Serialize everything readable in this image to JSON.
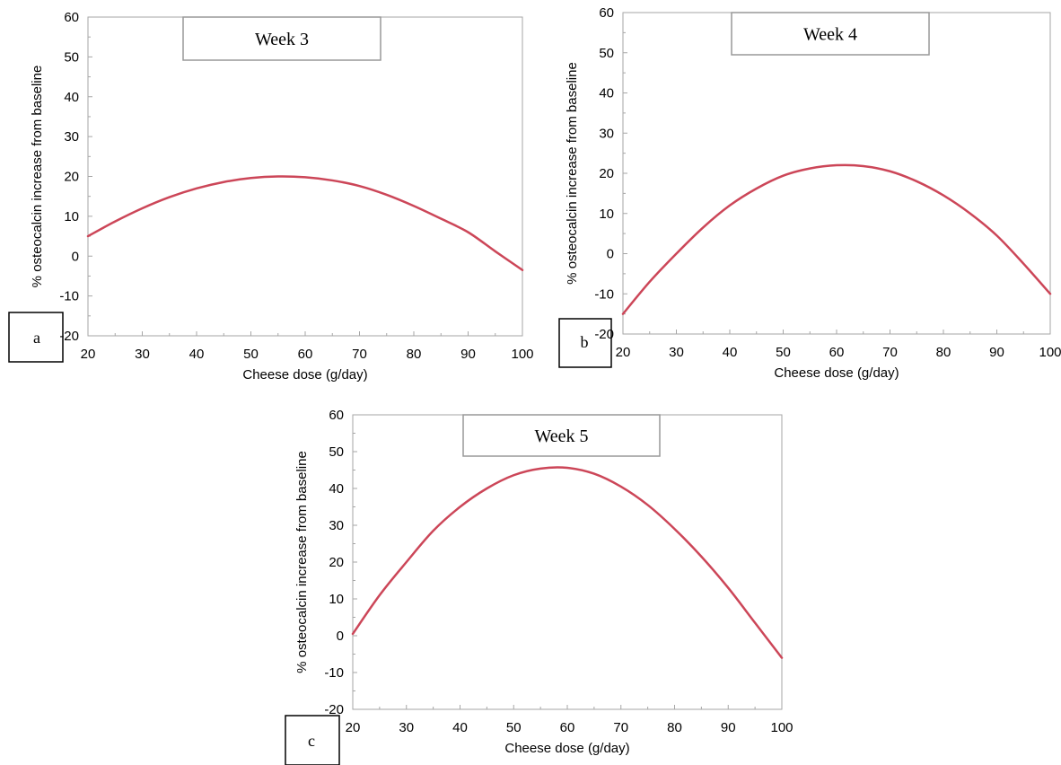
{
  "colors": {
    "curve": "#cc4658",
    "axis": "#a6a6a6",
    "frame": "#000000",
    "background": "#ffffff"
  },
  "chart_data": [
    {
      "type": "line",
      "panel_label": "a",
      "title": "Week 3",
      "xlabel": "Cheese dose (g/day)",
      "ylabel": "% osteocalcin increase from baseline",
      "xlim": [
        20,
        100
      ],
      "ylim": [
        -20,
        60
      ],
      "xticks": [
        20,
        30,
        40,
        50,
        60,
        70,
        80,
        90,
        100
      ],
      "yticks": [
        -20,
        -10,
        0,
        10,
        20,
        30,
        40,
        50,
        60
      ],
      "grid": false,
      "series": [
        {
          "x": [
            20,
            25,
            30,
            35,
            40,
            45,
            50,
            55,
            60,
            65,
            70,
            75,
            80,
            85,
            90,
            95,
            100
          ],
          "y": [
            5,
            8.7,
            12,
            14.8,
            17,
            18.6,
            19.6,
            20,
            19.8,
            19,
            17.6,
            15.4,
            12.6,
            9.4,
            6,
            1.2,
            -3.5
          ]
        }
      ]
    },
    {
      "type": "line",
      "panel_label": "b",
      "title": "Week 4",
      "xlabel": "Cheese dose (g/day)",
      "ylabel": "% osteocalcin increase from baseline",
      "xlim": [
        20,
        100
      ],
      "ylim": [
        -20,
        60
      ],
      "xticks": [
        20,
        30,
        40,
        50,
        60,
        70,
        80,
        90,
        100
      ],
      "yticks": [
        -20,
        -10,
        0,
        10,
        20,
        30,
        40,
        50,
        60
      ],
      "grid": false,
      "series": [
        {
          "x": [
            20,
            25,
            30,
            35,
            40,
            45,
            50,
            55,
            60,
            65,
            70,
            75,
            80,
            85,
            90,
            95,
            100
          ],
          "y": [
            -15,
            -7,
            0,
            6.5,
            12,
            16.2,
            19.4,
            21.2,
            22,
            21.8,
            20.5,
            18,
            14.5,
            10,
            4.5,
            -2.5,
            -10
          ]
        }
      ]
    },
    {
      "type": "line",
      "panel_label": "c",
      "title": "Week 5",
      "xlabel": "Cheese dose (g/day)",
      "ylabel": "% osteocalcin increase from baseline",
      "xlim": [
        20,
        100
      ],
      "ylim": [
        -20,
        60
      ],
      "xticks": [
        20,
        30,
        40,
        50,
        60,
        70,
        80,
        90,
        100
      ],
      "yticks": [
        -20,
        -10,
        0,
        10,
        20,
        30,
        40,
        50,
        60
      ],
      "grid": false,
      "series": [
        {
          "x": [
            20,
            25,
            30,
            35,
            40,
            45,
            50,
            55,
            60,
            65,
            70,
            75,
            80,
            85,
            90,
            95,
            100
          ],
          "y": [
            0.5,
            11,
            20,
            28.5,
            35,
            40,
            43.6,
            45.4,
            45.6,
            44,
            40.5,
            35.5,
            29,
            21.5,
            13,
            3.5,
            -6
          ]
        }
      ]
    }
  ]
}
